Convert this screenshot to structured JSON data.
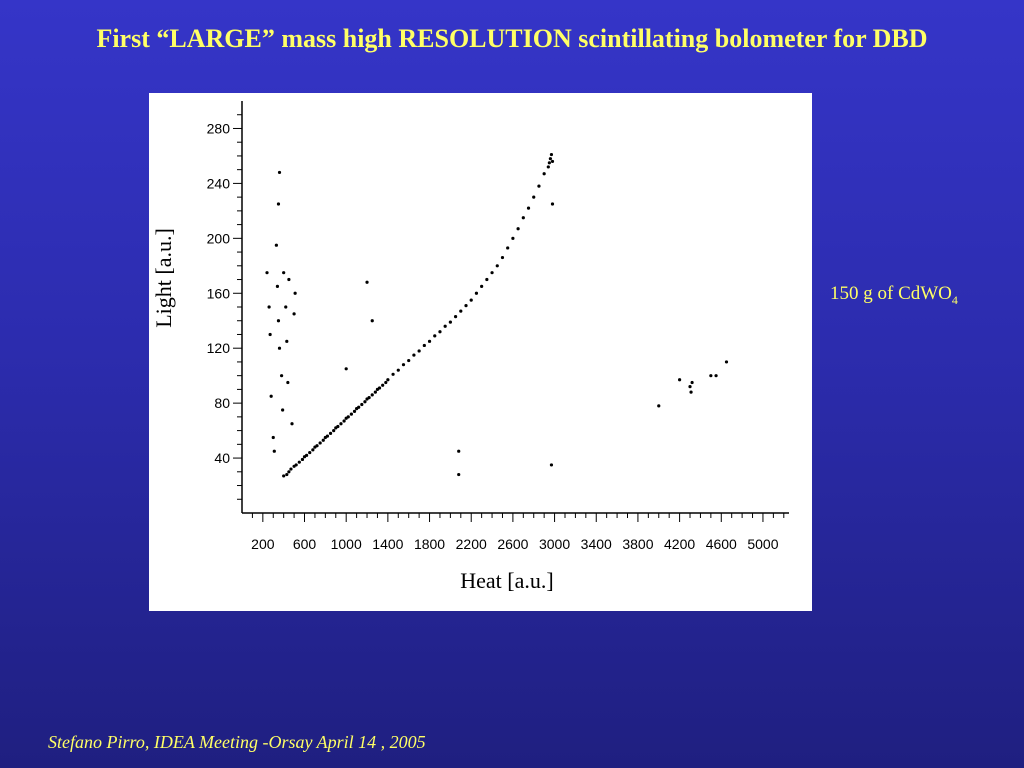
{
  "slide": {
    "title": "First “LARGE” mass high RESOLUTION scintillating bolometer for  DBD",
    "annotation": {
      "text": "150 g of CdWO",
      "subscript": "4"
    },
    "footer": "Stefano Pirro, IDEA Meeting -Orsay  April  14 , 2005"
  },
  "colors": {
    "background": "#2c2cae",
    "text": "#ffff66",
    "points": "#000000"
  },
  "chart_data": {
    "type": "scatter",
    "title": "",
    "xlabel": "Heat  [a.u.]",
    "ylabel": "Light  [a.u.]",
    "xlim": [
      0,
      5250
    ],
    "ylim": [
      0,
      300
    ],
    "x_ticks": [
      200,
      600,
      1000,
      1400,
      1800,
      2200,
      2600,
      3000,
      3400,
      3800,
      4200,
      4600,
      5000
    ],
    "y_ticks": [
      40,
      80,
      120,
      160,
      200,
      240,
      280
    ],
    "grid": false,
    "series": [
      {
        "points": [
          [
            400,
            27
          ],
          [
            430,
            28
          ],
          [
            450,
            30
          ],
          [
            470,
            32
          ],
          [
            500,
            34
          ],
          [
            520,
            35
          ],
          [
            550,
            37
          ],
          [
            580,
            39
          ],
          [
            600,
            41
          ],
          [
            620,
            42
          ],
          [
            650,
            44
          ],
          [
            680,
            46
          ],
          [
            700,
            48
          ],
          [
            720,
            49
          ],
          [
            750,
            51
          ],
          [
            780,
            53
          ],
          [
            800,
            55
          ],
          [
            820,
            56
          ],
          [
            850,
            58
          ],
          [
            880,
            60
          ],
          [
            900,
            62
          ],
          [
            920,
            63
          ],
          [
            950,
            65
          ],
          [
            980,
            67
          ],
          [
            1000,
            69
          ],
          [
            1020,
            70
          ],
          [
            1050,
            72
          ],
          [
            1080,
            74
          ],
          [
            1100,
            76
          ],
          [
            1120,
            77
          ],
          [
            1150,
            79
          ],
          [
            1180,
            81
          ],
          [
            1200,
            83
          ],
          [
            1220,
            84
          ],
          [
            1250,
            86
          ],
          [
            1280,
            88
          ],
          [
            1300,
            90
          ],
          [
            1320,
            91
          ],
          [
            1350,
            93
          ],
          [
            1380,
            95
          ],
          [
            1400,
            97
          ],
          [
            1450,
            101
          ],
          [
            1500,
            104
          ],
          [
            1550,
            108
          ],
          [
            1600,
            111
          ],
          [
            1650,
            115
          ],
          [
            1700,
            118
          ],
          [
            1750,
            122
          ],
          [
            1800,
            125
          ],
          [
            1850,
            129
          ],
          [
            1900,
            132
          ],
          [
            1950,
            136
          ],
          [
            2000,
            139
          ],
          [
            2050,
            143
          ],
          [
            2100,
            147
          ],
          [
            2150,
            151
          ],
          [
            2200,
            155
          ],
          [
            2250,
            160
          ],
          [
            2300,
            165
          ],
          [
            2350,
            170
          ],
          [
            2400,
            175
          ],
          [
            2450,
            180
          ],
          [
            2500,
            186
          ],
          [
            2550,
            193
          ],
          [
            2600,
            200
          ],
          [
            2650,
            207
          ],
          [
            2700,
            215
          ],
          [
            2750,
            222
          ],
          [
            2800,
            230
          ],
          [
            2850,
            238
          ],
          [
            2900,
            247
          ],
          [
            2940,
            252
          ],
          [
            2950,
            255
          ],
          [
            2960,
            258
          ],
          [
            2970,
            261
          ],
          [
            2980,
            256
          ],
          [
            240,
            175
          ],
          [
            260,
            150
          ],
          [
            270,
            130
          ],
          [
            280,
            85
          ],
          [
            300,
            55
          ],
          [
            310,
            45
          ],
          [
            330,
            195
          ],
          [
            340,
            165
          ],
          [
            350,
            140
          ],
          [
            360,
            120
          ],
          [
            350,
            225
          ],
          [
            360,
            248
          ],
          [
            380,
            100
          ],
          [
            390,
            75
          ],
          [
            400,
            175
          ],
          [
            420,
            150
          ],
          [
            430,
            125
          ],
          [
            440,
            95
          ],
          [
            450,
            170
          ],
          [
            480,
            65
          ],
          [
            500,
            145
          ],
          [
            510,
            160
          ],
          [
            1200,
            168
          ],
          [
            1250,
            140
          ],
          [
            1000,
            105
          ],
          [
            2080,
            45
          ],
          [
            2080,
            28
          ],
          [
            2970,
            35
          ],
          [
            2980,
            225
          ],
          [
            4000,
            78
          ],
          [
            4200,
            97
          ],
          [
            4300,
            92
          ],
          [
            4310,
            88
          ],
          [
            4320,
            95
          ],
          [
            4500,
            100
          ],
          [
            4550,
            100
          ],
          [
            4650,
            110
          ]
        ]
      }
    ]
  }
}
